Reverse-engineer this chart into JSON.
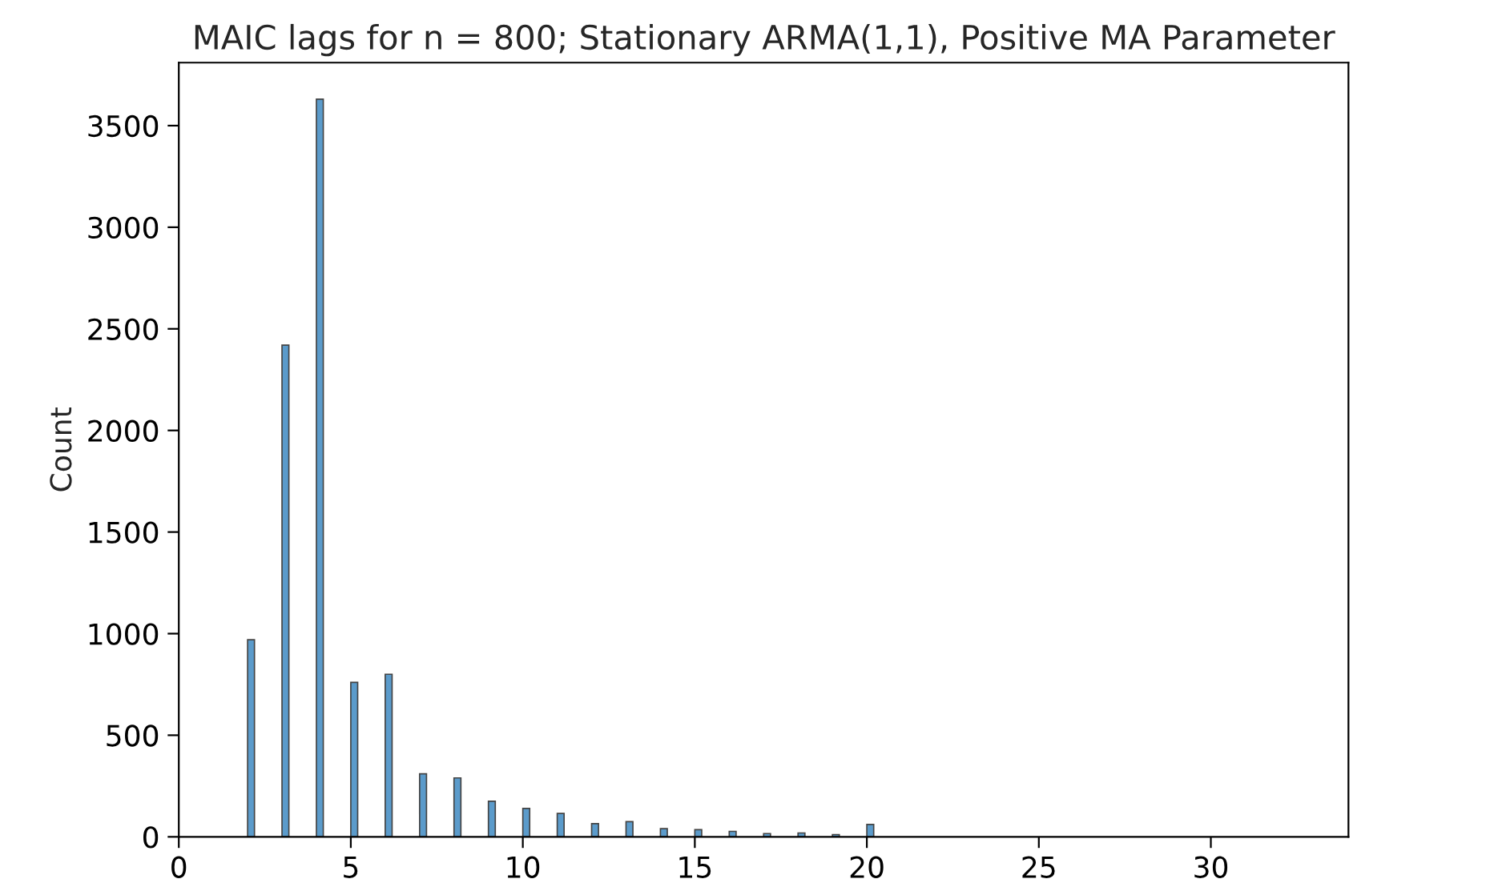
{
  "chart_data": {
    "type": "histogram",
    "title": "MAIC lags for n = 800; Stationary ARMA(1,1), Positive MA Parameter",
    "ylabel": "Count",
    "bins": [
      2,
      2.2,
      3,
      3.2,
      4,
      4.2,
      5,
      5.2,
      6,
      6.2,
      7,
      7.2,
      8,
      8.2,
      9,
      9.2,
      10,
      10.2,
      11,
      11.2,
      12,
      12.2,
      13,
      13.2,
      14,
      14.2,
      15,
      15.2,
      16,
      16.2,
      17,
      17.2,
      18,
      18.2,
      19,
      19.2,
      20,
      20.2
    ],
    "values": [
      970,
      0,
      2420,
      0,
      3630,
      0,
      760,
      0,
      800,
      0,
      310,
      0,
      290,
      0,
      175,
      0,
      140,
      0,
      115,
      0,
      65,
      0,
      75,
      0,
      40,
      0,
      35,
      0,
      27,
      0,
      16,
      0,
      19,
      0,
      11,
      0,
      61
    ],
    "color": "#5b9bcb",
    "xlim": [
      0,
      34
    ],
    "xticks": [
      0,
      5,
      10,
      15,
      20,
      25,
      30
    ],
    "ylim": [
      0,
      3810
    ],
    "yticks": [
      0,
      500,
      1000,
      1500,
      2000,
      2500,
      3000,
      3500
    ],
    "grid": false
  }
}
